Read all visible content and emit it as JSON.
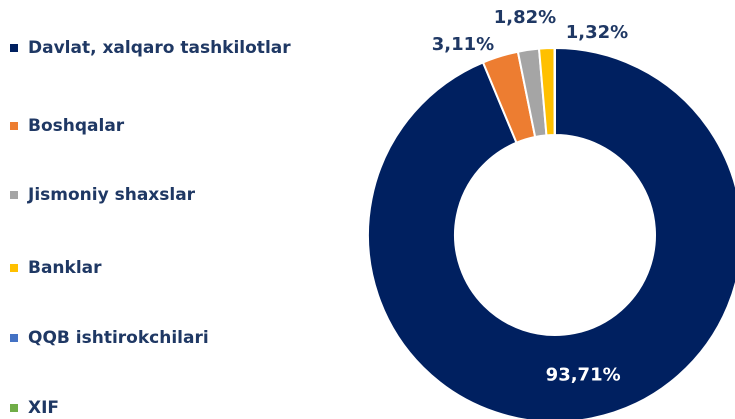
{
  "chart_data": {
    "type": "donut",
    "categories": [
      "Davlat, xalqaro tashkilotlar",
      "Boshqalar",
      "Jismoniy shaxslar",
      "Banklar",
      "QQB ishtirokchilari",
      "XIF"
    ],
    "values": [
      93.71,
      3.11,
      1.82,
      1.32,
      0.02,
      0.02
    ],
    "value_labels": [
      "93,71%",
      "3,11%",
      "1,82%",
      "1,32%",
      null,
      null
    ],
    "colors": [
      "#002060",
      "#ed7d31",
      "#a5a5a5",
      "#ffc000",
      "#4472c4",
      "#70ad47"
    ],
    "legend": "left"
  }
}
